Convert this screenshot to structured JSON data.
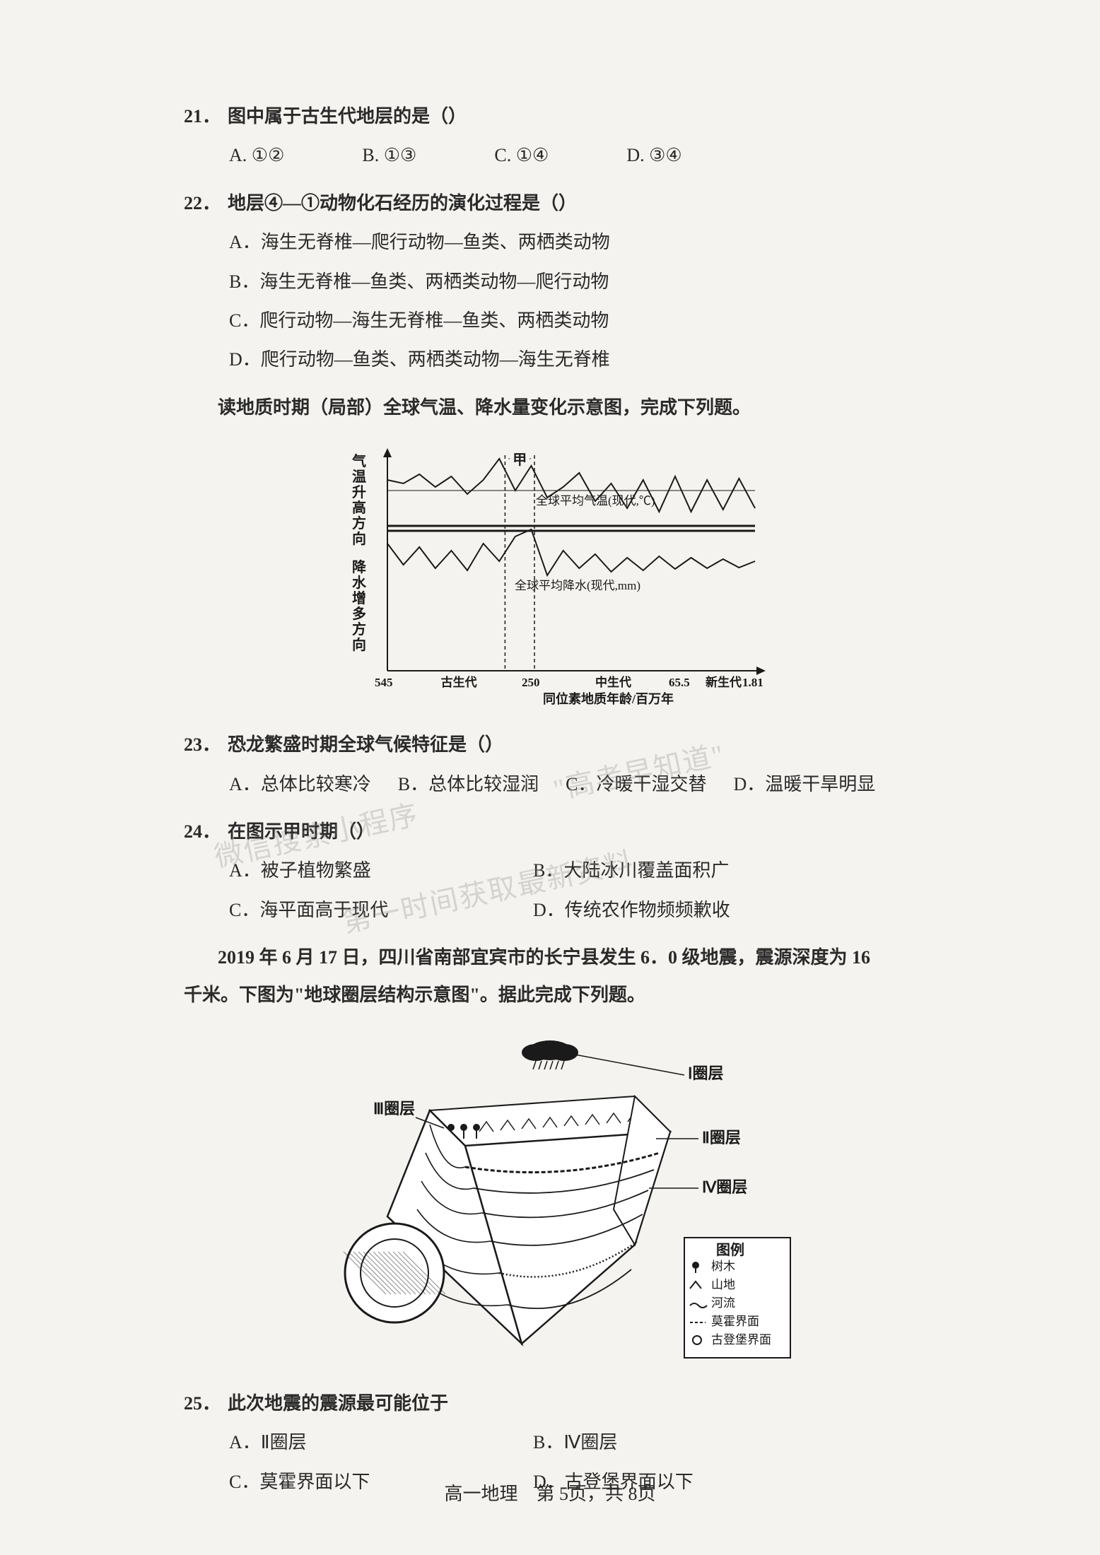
{
  "q21": {
    "num": "21．",
    "stem": "图中属于古生代地层的是（）",
    "opts": {
      "A": "A. ①②",
      "B": "B. ①③",
      "C": "C. ①④",
      "D": "D. ③④"
    }
  },
  "q22": {
    "num": "22．",
    "stem": "地层④—①动物化石经历的演化过程是（）",
    "A": "A．海生无脊椎—爬行动物—鱼类、两栖类动物",
    "B": "B．海生无脊椎—鱼类、两栖类动物—爬行动物",
    "C": "C．爬行动物—海生无脊椎—鱼类、两栖类动物",
    "D": "D．爬行动物—鱼类、两栖类动物—海生无脊椎"
  },
  "intro1": "读地质时期（局部）全球气温、降水量变化示意图，完成下列题。",
  "chart": {
    "type": "line",
    "y_axis_top": "气温升高方向",
    "y_axis_bot": "降水增多方向",
    "label_temp": "全球平均气温(现代,℃)",
    "label_precip": "全球平均降水(现代,mm)",
    "x_ticks": [
      "545",
      "古生代",
      "250",
      "中生代",
      "65.5",
      "新生代",
      "1.81"
    ],
    "x_caption": "同位素地质年龄/百万年",
    "marker": "甲",
    "line_color": "#1a1a1a",
    "bg": "#ffffff",
    "axis_width": 2,
    "temp_series_y": [
      50,
      55,
      42,
      60,
      45,
      70,
      50,
      20,
      65,
      30,
      75,
      60,
      40,
      80,
      55,
      90,
      50,
      95,
      45,
      95,
      50,
      92,
      48,
      90
    ],
    "precip_series_y": [
      140,
      170,
      145,
      175,
      150,
      178,
      140,
      165,
      130,
      120,
      185,
      150,
      175,
      155,
      180,
      160,
      178,
      158,
      176,
      160,
      175,
      162,
      174,
      165
    ]
  },
  "q23": {
    "num": "23．",
    "stem": "恐龙繁盛时期全球气候特征是（）",
    "opts": {
      "A": "A．总体比较寒冷",
      "B": "B．总体比较湿润",
      "C": "C．冷暖干湿交替",
      "D": "D．温暖干旱明显"
    }
  },
  "q24": {
    "num": "24．",
    "stem": "在图示甲时期（）",
    "A": "A．被子植物繁盛",
    "B": "B．大陆冰川覆盖面积广",
    "C": "C．海平面高于现代",
    "D": "D．传统农作物频频歉收"
  },
  "intro2a": "2019 年 6 月 17 日，四川省南部宜宾市的长宁县发生 6．0 级地震，震源深度为 16",
  "intro2b": "千米。下图为\"地球圈层结构示意图\"。据此完成下列题。",
  "diagram": {
    "type": "infographic",
    "labels": {
      "l1": "Ⅰ圈层",
      "l2": "Ⅱ圈层",
      "l3": "Ⅲ圈层",
      "l4": "Ⅳ圈层"
    },
    "legend_title": "图例",
    "legend_items": [
      "树木",
      "山地",
      "河流",
      "莫霍界面",
      "古登堡界面"
    ],
    "line_color": "#1a1a1a",
    "fill_bg": "#ffffff"
  },
  "q25": {
    "num": "25．",
    "stem": "此次地震的震源最可能位于",
    "A": "A．Ⅱ圈层",
    "B": "B．Ⅳ圈层",
    "C": "C．莫霍界面以下",
    "D": "D．古登堡界面以下"
  },
  "footer": "高一地理　第 5页，共 8页",
  "watermark": {
    "w1": "\"高考早知道\"",
    "w2": "微信搜索小程序",
    "w3": "第一时间获取最新资料"
  }
}
